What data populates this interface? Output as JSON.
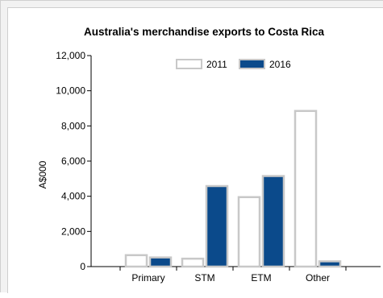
{
  "chart_data": {
    "type": "bar",
    "title": "Australia's merchandise exports to Costa Rica",
    "xlabel": "",
    "ylabel": "A$000",
    "categories": [
      "Primary",
      "STM",
      "ETM",
      "Other"
    ],
    "series": [
      {
        "name": "2011",
        "values": [
          650,
          450,
          3950,
          8850
        ],
        "color": "#ffffff",
        "stroke": "#c8c8c8"
      },
      {
        "name": "2016",
        "values": [
          520,
          4580,
          5150,
          300
        ],
        "color": "#0b4a8b",
        "stroke": "#c8c8c8"
      }
    ],
    "ylim": [
      0,
      12000
    ],
    "yticks": [
      0,
      2000,
      4000,
      6000,
      8000,
      10000,
      12000
    ],
    "ytick_labels": [
      "0",
      "2,000",
      "4,000",
      "6,000",
      "8,000",
      "10,000",
      "12,000"
    ],
    "grid": false,
    "legend_position": "top"
  }
}
